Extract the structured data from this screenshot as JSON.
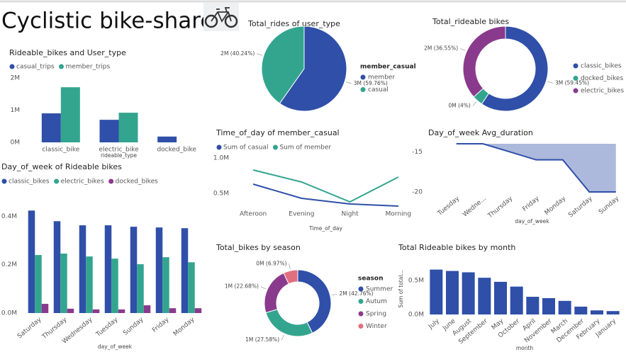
{
  "title": "Cyclistic bike-share",
  "chart_data": [
    {
      "type": "bar",
      "title": "Rideable_bikes and User_type",
      "categories": [
        "classic_bike",
        "electric_bike",
        "docked_bike"
      ],
      "series": [
        {
          "name": "casual_trips",
          "color": "#2f4fa8",
          "values": [
            900000,
            700000,
            180000
          ]
        },
        {
          "name": "member_trips",
          "color": "#33a58f",
          "values": [
            1710000,
            920000,
            null
          ]
        }
      ],
      "ylim": [
        0,
        2000000
      ],
      "yticks": [
        {
          "value": 0,
          "label": "0M"
        },
        {
          "value": 1000000,
          "label": "1M"
        },
        {
          "value": 2000000,
          "label": "2M"
        }
      ],
      "x_label": "rideable_type",
      "legend": "top-left"
    },
    {
      "type": "pie",
      "title": "Total_rides of user_type",
      "legend_title": "member_casual",
      "categories": [
        "member",
        "casual"
      ],
      "values": [
        59.76,
        40.24
      ],
      "value_labels": [
        "3M (59.76%)",
        "2M (40.24%)"
      ],
      "colors": [
        "#2f4fa8",
        "#33a58f"
      ],
      "legend": "right"
    },
    {
      "type": "donut",
      "title": "Total_rideable bikes",
      "categories": [
        "classic_bikes",
        "docked_bikes",
        "electric_bikes"
      ],
      "values": [
        59.45,
        4,
        36.55
      ],
      "value_labels": [
        "3M (59.45%)",
        "0M (4%)",
        "2M (36.55%)"
      ],
      "colors": [
        "#2f4fa8",
        "#33a58f",
        "#8a3a8c"
      ],
      "legend": "right"
    },
    {
      "type": "line",
      "title": "Time_of_day of member_casual",
      "categories": [
        "Afteroon",
        "Evening",
        "Night",
        "Morning"
      ],
      "series": [
        {
          "name": "Sum of casual",
          "color": "#2f4fa8",
          "values": [
            630000,
            430000,
            350000,
            320000
          ]
        },
        {
          "name": "Sum of member",
          "color": "#33a58f",
          "values": [
            830000,
            660000,
            380000,
            730000
          ]
        }
      ],
      "ylim": [
        310000,
        1100000
      ],
      "yticks": [
        {
          "value": 500000,
          "label": "0.5M"
        },
        {
          "value": 1000000,
          "label": "1.0M"
        }
      ],
      "x_label": "Time_of_day",
      "legend": "top-left"
    },
    {
      "type": "area",
      "title": "Day_of_week Avg_duration",
      "categories": [
        "Tuesday",
        "Wedne...",
        "Thursday",
        "Friday",
        "Monday",
        "Saturday",
        "Sunday"
      ],
      "values": [
        -14,
        -14,
        -15,
        -16,
        -16,
        -20,
        -20
      ],
      "color": "#2f4fa8",
      "ylim": [
        -20,
        -14
      ],
      "yticks": [
        -15,
        -20
      ],
      "x_label": "day_of_week"
    },
    {
      "type": "bar",
      "title": "Day_of_week of Rideable bikes",
      "categories": [
        "Saturday",
        "Thursday",
        "Wednesday",
        "Tuesday",
        "Sunday",
        "Friday",
        "Monday"
      ],
      "series": [
        {
          "name": "classic_bikes",
          "color": "#2f4fa8",
          "values": [
            424000,
            380000,
            363000,
            363000,
            357000,
            354000,
            351000
          ]
        },
        {
          "name": "electric_bikes",
          "color": "#33a58f",
          "values": [
            240000,
            246000,
            234000,
            225000,
            202000,
            231000,
            210000
          ]
        },
        {
          "name": "docked_bikes",
          "color": "#8a3a8c",
          "values": [
            38000,
            18000,
            15000,
            15000,
            32000,
            20000,
            20000
          ]
        }
      ],
      "ylim": [
        0,
        460000
      ],
      "yticks": [
        {
          "value": 0,
          "label": "0.0M"
        },
        {
          "value": 200000,
          "label": "0.2M"
        },
        {
          "value": 400000,
          "label": "0.4M"
        }
      ],
      "x_label": "day_of_week",
      "legend": "top-left"
    },
    {
      "type": "donut",
      "title": "Total_bikes by season",
      "legend_title": "season",
      "categories": [
        "Summer",
        "Autum",
        "Spring",
        "Winter"
      ],
      "values": [
        42.76,
        27.58,
        22.68,
        6.97
      ],
      "value_labels": [
        "2M (42.76%)",
        "1M (27.58%)",
        "1M (22.68%)",
        "0M (6.97%)"
      ],
      "colors": [
        "#2f4fa8",
        "#33a58f",
        "#8a3a8c",
        "#e06f7f"
      ],
      "legend": "right"
    },
    {
      "type": "bar",
      "title": "Total Rideable bikes by month",
      "categories": [
        "July",
        "June",
        "August",
        "September",
        "May",
        "October",
        "April",
        "November",
        "March",
        "December",
        "February",
        "January"
      ],
      "values": [
        660000,
        640000,
        620000,
        540000,
        480000,
        410000,
        260000,
        240000,
        200000,
        115000,
        60000,
        50000
      ],
      "color": "#2f4fa8",
      "ylim": [
        0,
        750000
      ],
      "yticks": [
        {
          "value": 0,
          "label": "0.0M"
        },
        {
          "value": 500000,
          "label": "0.5M"
        }
      ],
      "x_label": "month",
      "y_label": "Sum of total..."
    }
  ]
}
